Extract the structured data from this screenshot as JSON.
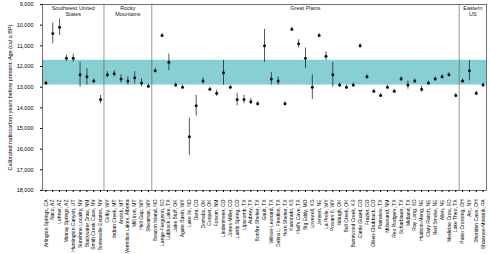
{
  "chart_data": {
    "type": "scatter",
    "y_label": "Calibrated radiocarbon years before present: Age (cal a BP)",
    "ylim": [
      9000,
      18000
    ],
    "yticks": [
      {
        "value": 9000,
        "label": "9,000"
      },
      {
        "value": 10000,
        "label": "10,000"
      },
      {
        "value": 11000,
        "label": "11,000"
      },
      {
        "value": 12000,
        "label": "12,000"
      },
      {
        "value": 13000,
        "label": "13,000"
      },
      {
        "value": 14000,
        "label": "14,000"
      },
      {
        "value": 15000,
        "label": "15,000"
      },
      {
        "value": 16000,
        "label": "16,000"
      },
      {
        "value": 17000,
        "label": "17,000"
      },
      {
        "value": 18000,
        "label": "18,000"
      }
    ],
    "color": "#111111",
    "marker": "circle",
    "band": {
      "values": [
        11700,
        12900
      ],
      "color": "#5fbfc3"
    },
    "groups": [
      {
        "name": "Southwest United States",
        "count": 9
      },
      {
        "name": "Rocky Mountains",
        "count": 7
      },
      {
        "name": "Great Plains",
        "count": 45
      },
      {
        "name": "Eastern US",
        "count": 4
      }
    ],
    "categories": [
      "Arlington Springs, CA",
      "Naco, AZ",
      "Lehner, AZ",
      "Murray Springs, AZ",
      "Huntington Canyon, UT",
      "Sunshine Locality, NV",
      "Blackwater Draw, NM",
      "Smith Creek Cave, NV",
      "Bonneville Estates, NV",
      "Colby, WY",
      "Indian Creek, MT",
      "Anzick, MT",
      "Vermilion Lakes, Alberta",
      "Mill Iron, MT",
      "Hell Gap, WY",
      "Sheaman, WY",
      "Beacon Island, ND",
      "Lange-Ferguson, SD",
      "Lubbock Lake, TX",
      "Jake Bluff, OK",
      "Agate Basin, WY",
      "Lake Ilo, ND",
      "Dent, CO",
      "Domebo, OK",
      "Cooper, OK",
      "Folsom, NM",
      "Lindenmeier, CO",
      "Jones-Miller, CO",
      "Lamb Spring, CO",
      "Lipscomb, TX",
      "Aubrey, TX",
      "Bonfire Shelter, TX",
      "Gault, TX",
      "Wilson-Leonard, TX",
      "Debra L. Friedkin, TX",
      "Horn Shelter, TX",
      "Kanorado, KS",
      "Hall's Cave, TX",
      "Big Eddy, MO",
      "Lovewell, KS",
      "Jensen, NE",
      "La Prele, WY",
      "Powars II, WY",
      "Waugh, OK",
      "Bull Creek, OK",
      "Burntwood Creek, KS",
      "Cattle Guard, CO",
      "Frazier, CO",
      "Olsen-Chubbuck, CO",
      "Plainview, TX",
      "Milnesand, NM",
      "Rex Rodgers, TX",
      "Scharbauer, TX",
      "Midland, TX",
      "Ray Long, SD",
      "Hudson-Meng, NE",
      "Clary Ranch, NE",
      "Red Smoke, NE",
      "Allen, NE",
      "Medicine Crow, SD",
      "Lake Theo, TX",
      "Paleo Crossing, OH",
      "Arc, NY",
      "Sheriden Cave, OH",
      "Shawnee-Minisink, PA"
    ],
    "values": [
      12800,
      10400,
      10100,
      11600,
      11600,
      12400,
      12500,
      12700,
      13600,
      12400,
      12350,
      12600,
      12700,
      12550,
      12800,
      12950,
      12200,
      10500,
      11800,
      12900,
      13000,
      15400,
      13900,
      12700,
      13100,
      13300,
      12300,
      13000,
      13600,
      13600,
      13700,
      13800,
      11000,
      12600,
      12700,
      13800,
      10200,
      10900,
      11600,
      13000,
      10500,
      11500,
      12400,
      12900,
      13000,
      12900,
      11000,
      12500,
      13200,
      13400,
      13000,
      13200,
      12600,
      12900,
      12700,
      13100,
      12800,
      12600,
      12500,
      12400,
      13400,
      12700,
      12200,
      13300,
      12900
    ],
    "errors": [
      80,
      500,
      400,
      150,
      200,
      600,
      400,
      100,
      200,
      150,
      150,
      200,
      200,
      300,
      200,
      100,
      100,
      100,
      400,
      100,
      100,
      900,
      500,
      150,
      100,
      150,
      600,
      100,
      300,
      200,
      150,
      100,
      800,
      300,
      200,
      100,
      100,
      200,
      500,
      600,
      100,
      200,
      600,
      100,
      100,
      100,
      100,
      100,
      100,
      100,
      100,
      100,
      100,
      200,
      100,
      150,
      100,
      100,
      100,
      100,
      100,
      100,
      500,
      100,
      100
    ]
  }
}
